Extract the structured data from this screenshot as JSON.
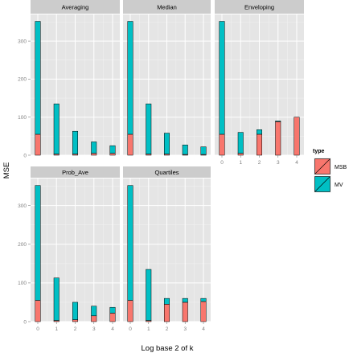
{
  "chart_data": [
    {
      "type": "bar",
      "stacked": true,
      "panel": "Averaging",
      "x": [
        0,
        1,
        2,
        3,
        4
      ],
      "ylim": [
        0,
        370
      ],
      "series": [
        {
          "name": "MSB",
          "values": [
            55,
            3,
            3,
            5,
            5
          ]
        },
        {
          "name": "MV",
          "values": [
            297,
            132,
            60,
            30,
            20
          ]
        }
      ]
    },
    {
      "type": "bar",
      "stacked": true,
      "panel": "Median",
      "x": [
        0,
        1,
        2,
        3,
        4
      ],
      "ylim": [
        0,
        370
      ],
      "series": [
        {
          "name": "MSB",
          "values": [
            55,
            3,
            3,
            2,
            2
          ]
        },
        {
          "name": "MV",
          "values": [
            297,
            132,
            55,
            25,
            20
          ]
        }
      ]
    },
    {
      "type": "bar",
      "stacked": true,
      "panel": "Enveloping",
      "x": [
        0,
        1,
        2,
        3,
        4
      ],
      "ylim": [
        0,
        370
      ],
      "series": [
        {
          "name": "MSB",
          "values": [
            55,
            5,
            55,
            88,
            100
          ]
        },
        {
          "name": "MV",
          "values": [
            297,
            55,
            12,
            2,
            0
          ]
        }
      ]
    },
    {
      "type": "bar",
      "stacked": true,
      "panel": "Prob_Ave",
      "x": [
        0,
        1,
        2,
        3,
        4
      ],
      "ylim": [
        0,
        370
      ],
      "series": [
        {
          "name": "MSB",
          "values": [
            55,
            3,
            5,
            15,
            22
          ]
        },
        {
          "name": "MV",
          "values": [
            297,
            110,
            45,
            25,
            15
          ]
        }
      ]
    },
    {
      "type": "bar",
      "stacked": true,
      "panel": "Quartiles",
      "x": [
        0,
        1,
        2,
        3,
        4
      ],
      "ylim": [
        0,
        370
      ],
      "series": [
        {
          "name": "MSB",
          "values": [
            55,
            3,
            45,
            50,
            52
          ]
        },
        {
          "name": "MV",
          "values": [
            297,
            132,
            15,
            10,
            8
          ]
        }
      ]
    }
  ],
  "axes": {
    "xlabel": "Log base 2 of k",
    "ylabel": "MSE",
    "y_ticks": [
      0,
      100,
      200,
      300
    ],
    "x_ticks": [
      "0",
      "1",
      "2",
      "3",
      "4"
    ]
  },
  "legend": {
    "title": "type",
    "items": [
      {
        "label": "MSB",
        "color": "#F8766D"
      },
      {
        "label": "MV",
        "color": "#00BFC4"
      }
    ]
  },
  "colors": {
    "panel_bg": "#E5E5E5",
    "strip_bg": "#CCCCCC",
    "grid_major": "#FFFFFF",
    "grid_minor": "#F2F2F2",
    "bar_outline": "#000000"
  }
}
